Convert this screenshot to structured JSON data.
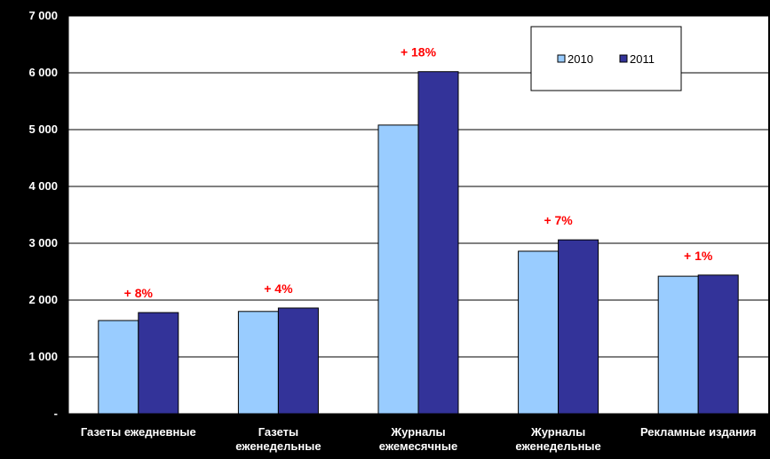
{
  "chart_data": {
    "type": "bar",
    "categories": [
      [
        "Газеты ежедневные"
      ],
      [
        "Газеты",
        "еженедельные"
      ],
      [
        "Журналы",
        "ежемесячные"
      ],
      [
        "Журналы",
        "еженедельные"
      ],
      [
        "Рекламные издания"
      ]
    ],
    "series": [
      {
        "name": "2010",
        "values": [
          1640,
          1800,
          5080,
          2860,
          2420
        ],
        "color": "#99ccff"
      },
      {
        "name": "2011",
        "values": [
          1780,
          1860,
          6020,
          3060,
          2440
        ],
        "color": "#333399"
      }
    ],
    "annotations": [
      "+ 8%",
      "+ 4%",
      "+ 18%",
      "+ 7%",
      "+ 1%"
    ],
    "ylim": [
      0,
      7000
    ],
    "yticks": [
      {
        "value": 0,
        "label": "-"
      },
      {
        "value": 1000,
        "label": "1 000"
      },
      {
        "value": 2000,
        "label": "2 000"
      },
      {
        "value": 3000,
        "label": "3 000"
      },
      {
        "value": 4000,
        "label": "4 000"
      },
      {
        "value": 5000,
        "label": "5 000"
      },
      {
        "value": 6000,
        "label": "6 000"
      },
      {
        "value": 7000,
        "label": "7 000"
      }
    ],
    "grid": true,
    "legend_position": "top-right",
    "title": "",
    "xlabel": "",
    "ylabel": "",
    "plot_background": "#ffffff",
    "page_background": "#000000",
    "annotation_color": "#ff0000"
  }
}
